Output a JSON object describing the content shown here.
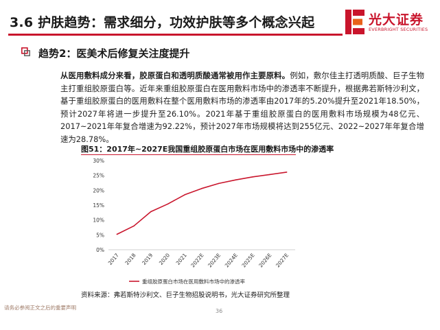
{
  "header": {
    "title": "3.6 护肤趋势：需求细分，功效护肤等多个概念兴起",
    "logo_cn": "光大证券",
    "logo_en": "EVERBRIGHT SECURITIES",
    "accent_color": "#c9152c"
  },
  "section": {
    "icon": "square-bullet-icon",
    "title": "趋势2：医美术后修复关注度提升"
  },
  "body": {
    "lead": "从医用敷料成分来看，胶原蛋白和透明质酸通常被用作主要原料。",
    "text": "例如，敷尔佳主打透明质酸、巨子生物主打重组胶原蛋白等。近年来重组胶原蛋白在医用敷料市场中的渗透率不断提升，根据弗若斯特沙利文，基于重组胶原蛋白的医用敷料在整个医用敷料市场的渗透率由2017年的5.20%提升至2021年18.50%，预计2027年将进一步提升至26.10%。2021年基于重组胶原蛋白的医用敷料市场规模为48亿元、2017~2021年年复合增速为92.22%，预计2027年市场规模将达到255亿元、2022~2027年年复合增速为28.78%。"
  },
  "figure": {
    "title": "图51：2017年~2027E我国重组胶原蛋白市场在医用敷料市场中的渗透率",
    "source": "资料来源：弗若斯特沙利文、巨子生物招股说明书，光大证券研究所整理"
  },
  "chart_data": {
    "type": "line",
    "title": "图51：2017年~2027E我国重组胶原蛋白市场在医用敷料市场中的渗透率",
    "categories": [
      "2017",
      "2018",
      "2019",
      "2020",
      "2021",
      "2022E",
      "2023E",
      "2024E",
      "2025E",
      "2026E",
      "2027E"
    ],
    "series": [
      {
        "name": "重组胶原蛋白市场在医用敷料市场中的渗透率",
        "values": [
          5.2,
          8.0,
          12.8,
          15.4,
          18.5,
          20.6,
          22.3,
          23.5,
          24.5,
          25.3,
          26.1
        ],
        "color": "#c9152c"
      }
    ],
    "yticks": [
      "0%",
      "5%",
      "10%",
      "15%",
      "20%",
      "25%",
      "30%"
    ],
    "ylim": [
      0,
      30
    ],
    "xlabel": "",
    "ylabel": "",
    "grid": false,
    "legend_position": "bottom"
  },
  "footer": {
    "disclaimer": "请务必参阅正文之后的重要声明",
    "page_number": "36"
  }
}
